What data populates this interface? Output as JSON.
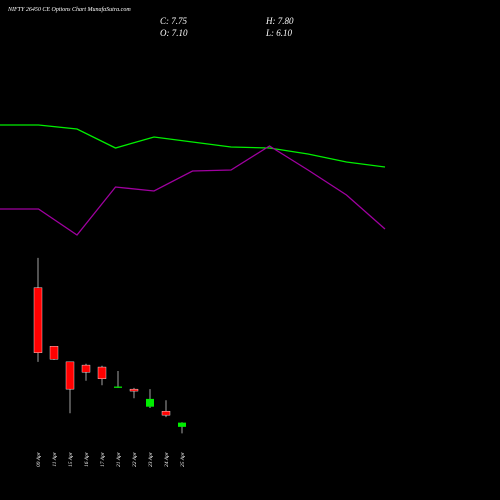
{
  "header": {
    "title": "NIFTY 26450  CE Options  Chart MunafaSutra.com",
    "close": "C: 7.75",
    "high": "H: 7.80",
    "open": "O: 7.10",
    "low": "L: 6.10"
  },
  "chart_data": [
    {
      "type": "line",
      "ylim": [
        0,
        50
      ],
      "series": [
        {
          "name": null,
          "color": "#00ee00",
          "values": [
            33.75,
            33.75,
            32.75,
            28,
            30.75,
            29.5,
            28.25,
            28,
            26.5,
            24.5,
            23.25
          ]
        },
        {
          "name": null,
          "color": "#a000a0",
          "values": [
            12.75,
            12.75,
            6.25,
            18.25,
            17.25,
            22.25,
            22.5,
            28.5,
            22.5,
            16.25,
            7.75
          ]
        }
      ]
    },
    {
      "type": "candlestick",
      "ylim": [
        0,
        60
      ],
      "up_color": "#00ee00",
      "down_color": "#ff0000",
      "categories": [
        "09 Apr",
        "11 Apr",
        "15 Apr",
        "16 Apr",
        "17 Apr",
        "21 Apr",
        "22 Apr",
        "23 Apr",
        "24 Apr",
        "25 Apr"
      ],
      "open": [
        28.5,
        19.5,
        17.1,
        16.6,
        16.3,
        13.1,
        12.9,
        10.2,
        9.5,
        7.1
      ],
      "high": [
        33.1,
        19.5,
        17.1,
        16.8,
        16.5,
        15.7,
        13.1,
        12.9,
        11.2,
        7.8
      ],
      "low": [
        17.1,
        17.4,
        9.2,
        14.2,
        13.5,
        13.1,
        11.5,
        10.0,
        8.6,
        6.1
      ],
      "close": [
        18.5,
        17.5,
        12.9,
        15.5,
        14.5,
        13.3,
        12.6,
        11.4,
        8.9,
        7.75
      ]
    }
  ]
}
